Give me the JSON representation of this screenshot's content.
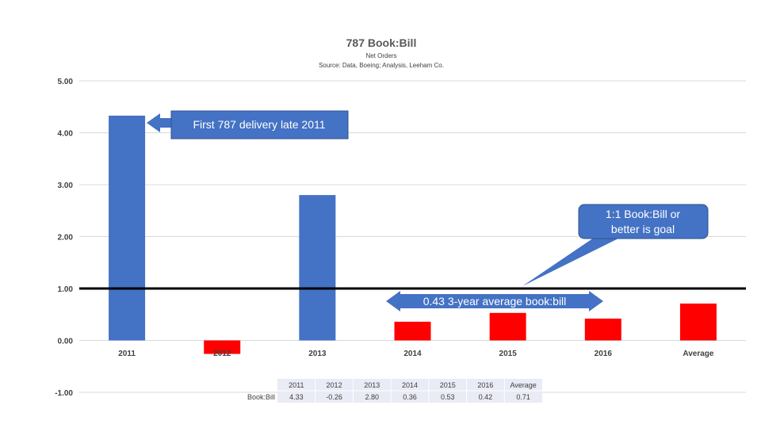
{
  "chart_data": {
    "type": "bar",
    "title": "787 Book:Bill",
    "subtitle_1": "Net Orders",
    "subtitle_2": "Source: Data, Boeing; Analysis, Leeham Co.",
    "categories": [
      "2011",
      "2012",
      "2013",
      "2014",
      "2015",
      "2016",
      "Average"
    ],
    "values": [
      4.33,
      -0.26,
      2.8,
      0.36,
      0.53,
      0.42,
      0.71
    ],
    "value_labels": [
      "4.33",
      "-0.26",
      "2.80",
      "0.36",
      "0.53",
      "0.42",
      "0.71"
    ],
    "ylim": [
      -1,
      5
    ],
    "y_ticks": [
      5,
      4,
      3,
      2,
      1,
      0,
      -1
    ],
    "y_tick_labels": [
      "5.00",
      "4.00",
      "3.00",
      "2.00",
      "1.00",
      "0.00",
      "-1.00"
    ],
    "grid": true,
    "reference_line": 1.0,
    "table_row_label": "Book:Bill",
    "colors": {
      "primary_bar": "#4472C4",
      "highlight_bar": "#FF0000",
      "reference_line": "#000000",
      "grid": "#D9D9D9",
      "table_fill": "#E9EBF5"
    },
    "bar_color_keys": [
      "primary_bar",
      "highlight_bar",
      "primary_bar",
      "highlight_bar",
      "highlight_bar",
      "highlight_bar",
      "highlight_bar"
    ],
    "annotations": {
      "first_delivery": "First 787 delivery late 2011",
      "goal_line_1": "1:1 Book:Bill or",
      "goal_line_2": "better is goal",
      "average_arrow": "0.43 3-year average book:bill"
    }
  }
}
